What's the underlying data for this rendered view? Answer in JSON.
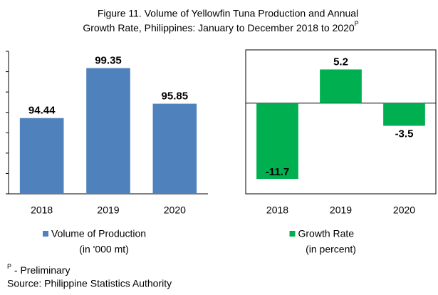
{
  "title_lines": [
    "Figure 11. Volume of Yellowfin Tuna Production and  Annual",
    "Growth Rate, Philippines: January to December 2018 to 2020"
  ],
  "title_superscript": "P",
  "footnote_mark": "P",
  "footnote": " - Preliminary",
  "source": "Source: Philippine Statistics Authority",
  "chart_data": [
    {
      "type": "bar",
      "categories": [
        "2018",
        "2019",
        "2020"
      ],
      "series": [
        {
          "name": "Volume of Production",
          "unit": "(in '000 mt)",
          "color": "#4f81bd",
          "values": [
            94.44,
            99.35,
            95.85
          ]
        }
      ],
      "ylim": [
        87,
        101
      ],
      "yticks": [
        87,
        89,
        91,
        93,
        95,
        97,
        99,
        101
      ],
      "frame": false
    },
    {
      "type": "bar",
      "categories": [
        "2018",
        "2019",
        "2020"
      ],
      "series": [
        {
          "name": "Growth Rate",
          "unit": "(in percent)",
          "color": "#00b050",
          "values": [
            -11.7,
            5.2,
            -3.5
          ]
        }
      ],
      "ylim": [
        -14,
        8
      ],
      "frame": true
    }
  ]
}
